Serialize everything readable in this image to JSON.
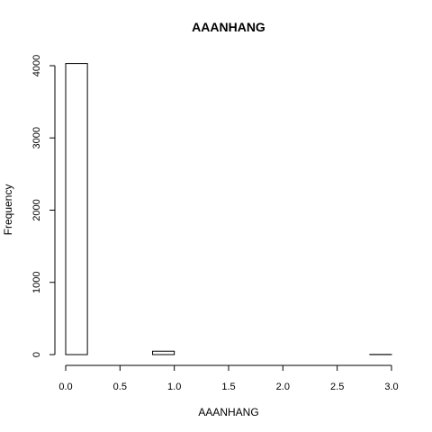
{
  "chart_data": {
    "type": "bar",
    "title": "AAANHANG",
    "xlabel": "AAANHANG",
    "ylabel": "Frequency",
    "bin_edges": [
      0,
      0.2,
      0.4,
      0.6,
      0.8,
      1.0,
      1.2,
      1.4,
      1.6,
      1.8,
      2.0,
      2.2,
      2.4,
      2.6,
      2.8,
      3.0
    ],
    "values": [
      4030,
      0,
      0,
      0,
      47,
      0,
      0,
      0,
      0,
      0,
      0,
      0,
      0,
      0,
      2
    ],
    "xlim": [
      0,
      3.0
    ],
    "ylim": [
      0,
      4000
    ],
    "x_ticks": [
      "0.0",
      "0.5",
      "1.0",
      "1.5",
      "2.0",
      "2.5",
      "3.0"
    ],
    "y_ticks": [
      "0",
      "1000",
      "2000",
      "3000",
      "4000"
    ],
    "grid": false
  }
}
